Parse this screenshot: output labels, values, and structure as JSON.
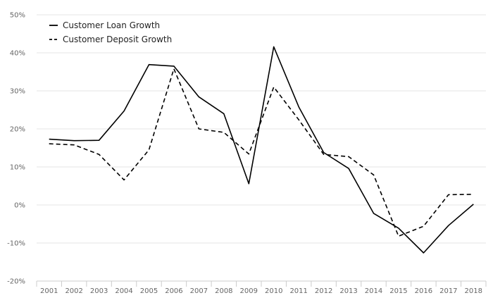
{
  "chart_data": {
    "type": "line",
    "title": "",
    "xlabel": "",
    "ylabel": "",
    "x": [
      "2001",
      "2002",
      "2003",
      "2004",
      "2005",
      "2006",
      "2007",
      "2008",
      "2009",
      "2010",
      "2011",
      "2012",
      "2013",
      "2014",
      "2015",
      "2016",
      "2017",
      "2018"
    ],
    "ylim": [
      -20,
      50
    ],
    "yticks": [
      -20,
      -10,
      0,
      10,
      20,
      30,
      40,
      50
    ],
    "ytick_labels": [
      "-20%",
      "-10%",
      "0%",
      "10%",
      "20%",
      "30%",
      "40%",
      "50%"
    ],
    "grid": "horizontal",
    "legend": "top-left",
    "series": [
      {
        "name": "Customer Loan Growth",
        "line_style": "solid",
        "color": "#000000",
        "values": [
          17.3,
          16.9,
          17.0,
          24.7,
          36.9,
          36.5,
          28.4,
          24.0,
          5.6,
          41.6,
          25.8,
          13.8,
          9.6,
          -2.2,
          -6.1,
          -12.6,
          -5.4,
          0.2
        ]
      },
      {
        "name": "Customer Deposit Growth",
        "line_style": "dashed",
        "color": "#000000",
        "values": [
          16.1,
          15.8,
          13.3,
          6.6,
          14.5,
          35.8,
          20.0,
          19.1,
          13.4,
          31.0,
          22.4,
          13.3,
          12.7,
          7.9,
          -8.2,
          -5.6,
          2.7,
          2.8
        ]
      }
    ]
  }
}
